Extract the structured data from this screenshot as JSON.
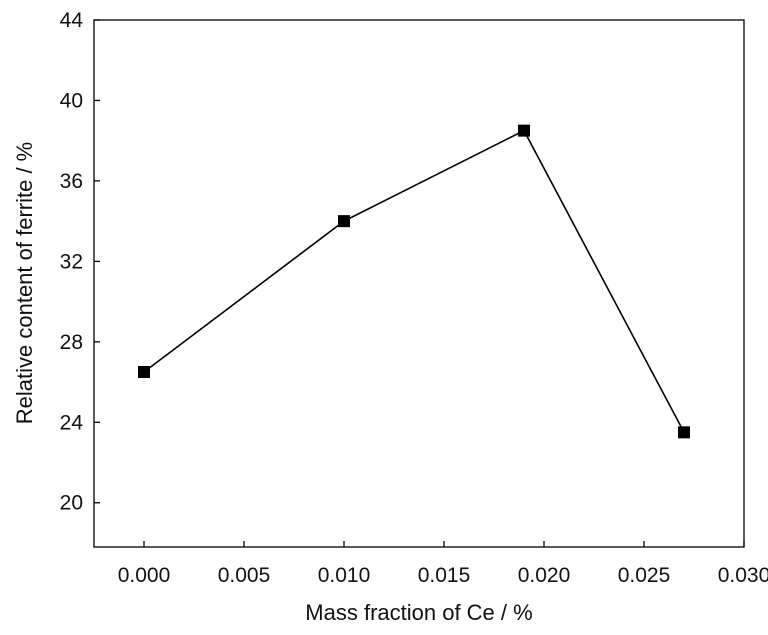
{
  "chart_data": {
    "type": "line",
    "xlabel": "Mass fraction of Ce / %",
    "ylabel": "Relative content of ferrite / %",
    "xlim": [
      -0.0025,
      0.03
    ],
    "ylim": [
      17.8,
      44
    ],
    "x_ticks": [
      "0.000",
      "0.005",
      "0.010",
      "0.015",
      "0.020",
      "0.025",
      "0.030"
    ],
    "y_ticks": [
      "20",
      "24",
      "28",
      "32",
      "36",
      "40",
      "44"
    ],
    "grid": false,
    "legend": "none",
    "marker": "square",
    "color": "#000000",
    "series": [
      {
        "x": [
          0.0,
          0.01,
          0.019,
          0.027
        ],
        "y": [
          26.5,
          34.0,
          38.5,
          23.5
        ]
      }
    ]
  }
}
